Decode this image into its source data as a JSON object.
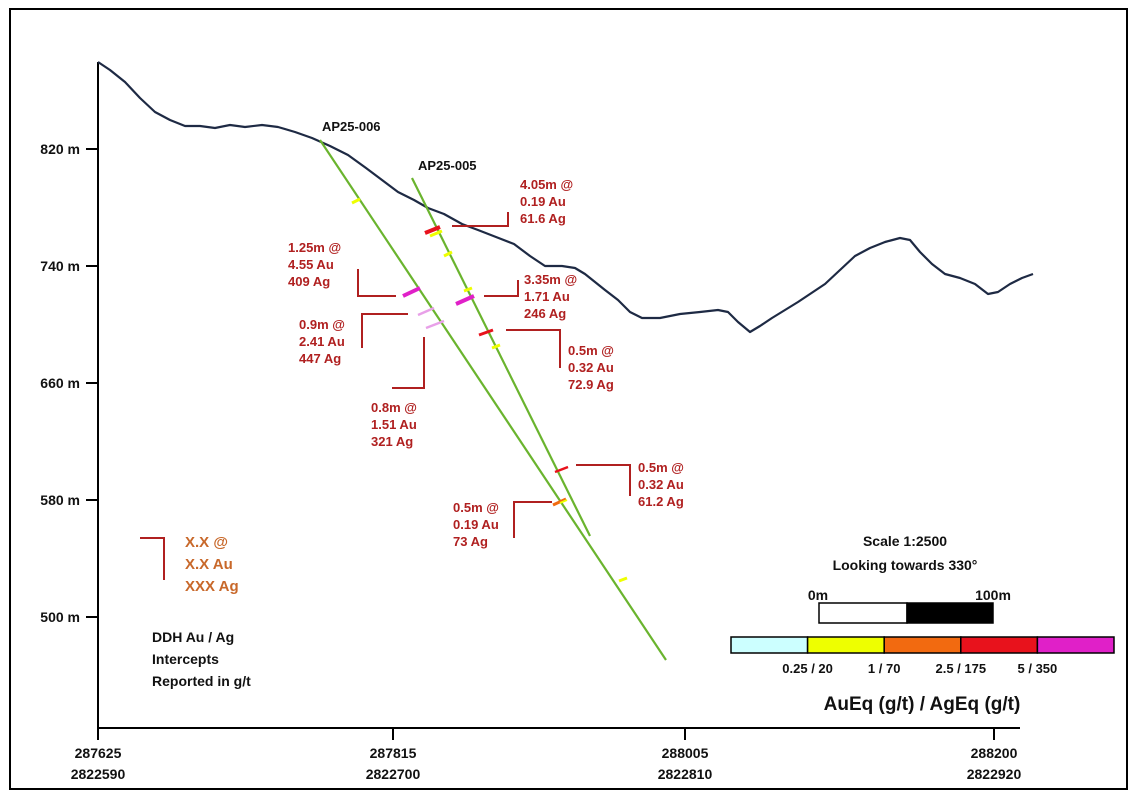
{
  "y_axis": {
    "ticks": [
      {
        "value": 820,
        "label": "820 m"
      },
      {
        "value": 740,
        "label": "740 m"
      },
      {
        "value": 660,
        "label": "660 m"
      },
      {
        "value": 580,
        "label": "580 m"
      },
      {
        "value": 500,
        "label": "500 m"
      }
    ]
  },
  "x_axis": {
    "ticks": [
      {
        "easting": "287625",
        "northing": "2822590"
      },
      {
        "easting": "287815",
        "northing": "2822700"
      },
      {
        "easting": "288005",
        "northing": "2822810"
      },
      {
        "easting": "288200",
        "northing": "2822920"
      }
    ]
  },
  "holes": [
    {
      "name": "AP25-006"
    },
    {
      "name": "AP25-005"
    }
  ],
  "intercepts": [
    {
      "hole": "AP25-005",
      "lines": [
        "4.05m @",
        "0.19 Au",
        "61.6 Ag"
      ]
    },
    {
      "hole": "AP25-006",
      "lines": [
        "1.25m @",
        "4.55 Au",
        "409 Ag"
      ]
    },
    {
      "hole": "AP25-005",
      "lines": [
        "3.35m @",
        "1.71 Au",
        "246 Ag"
      ]
    },
    {
      "hole": "AP25-006",
      "lines": [
        "0.9m @",
        "2.41 Au",
        "447 Ag"
      ]
    },
    {
      "hole": "AP25-005",
      "lines": [
        "0.5m @",
        "0.32 Au",
        "72.9 Ag"
      ]
    },
    {
      "hole": "AP25-006",
      "lines": [
        "0.8m @",
        "1.51 Au",
        "321 Ag"
      ]
    },
    {
      "hole": "AP25-005",
      "lines": [
        "0.5m @",
        "0.32 Au",
        "61.2 Ag"
      ]
    },
    {
      "hole": "AP25-006",
      "lines": [
        "0.5m @",
        "0.19 Au",
        "73 Ag"
      ]
    }
  ],
  "legend_template": {
    "lines": [
      "X.X @",
      "X.X Au",
      "XXX Ag"
    ]
  },
  "note": {
    "lines": [
      "DDH Au / Ag",
      "Intercepts",
      "Reported in g/t"
    ]
  },
  "scale": {
    "title": "Scale 1:2500",
    "direction": "Looking towards 330°",
    "start_label": "0m",
    "end_label": "100m"
  },
  "color_scale": {
    "colors": [
      "#ccffff",
      "#eeff00",
      "#f26a10",
      "#e8121c",
      "#e020c8"
    ],
    "labels": [
      "0.25 / 20",
      "1 / 70",
      "2.5 / 175",
      "5 / 350"
    ],
    "title": "AuEq (g/t) / AgEq (g/t)"
  },
  "styles": {
    "trace_color": "#6ab42e",
    "topo_color": "#1e2a44",
    "intercept_text_color": "#b02020",
    "template_text_color": "#c8682a"
  }
}
